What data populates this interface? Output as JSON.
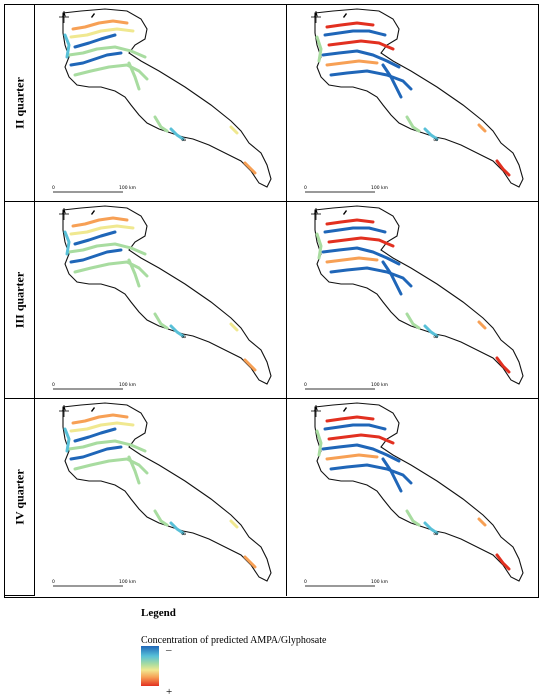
{
  "rows": [
    {
      "label": "II quarter"
    },
    {
      "label": "III quarter"
    },
    {
      "label": "IV quarter"
    }
  ],
  "scalebar": {
    "left_label": "0",
    "right_label": "100 km"
  },
  "legend": {
    "title": "Legend",
    "caption": "Concentration of predicted AMPA/Glyphosate",
    "low_symbol": "–",
    "high_symbol": "+",
    "colors": [
      "#1f66b8",
      "#58c0d8",
      "#a8dca0",
      "#f0e890",
      "#f7a055",
      "#e23020"
    ]
  },
  "compass_icon": "north-arrow-icon"
}
